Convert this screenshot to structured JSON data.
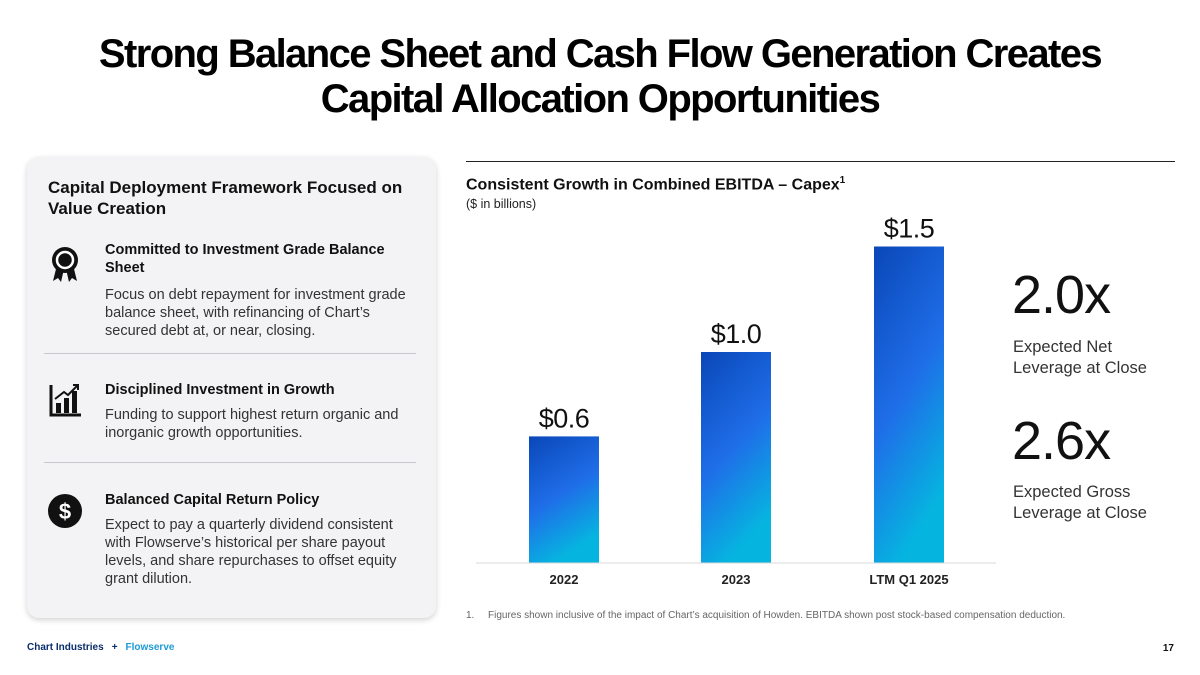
{
  "slide": {
    "title_line1": "Strong Balance Sheet and Cash Flow Generation Creates",
    "title_line2": "Capital Allocation Opportunities",
    "page_number": "17"
  },
  "panel": {
    "heading": "Capital Deployment Framework Focused on Value Creation",
    "items": [
      {
        "icon": "award-ribbon-icon",
        "heading": "Committed to Investment Grade Balance Sheet",
        "body": "Focus on debt repayment for investment grade balance sheet, with refinancing of Chart’s secured debt at, or near, closing."
      },
      {
        "icon": "bar-growth-icon",
        "heading": "Disciplined Investment in Growth",
        "body": "Funding to support highest return organic and inorganic growth opportunities."
      },
      {
        "icon": "dollar-circle-icon",
        "heading": "Balanced Capital Return Policy",
        "body": "Expect to pay a quarterly dividend consistent with Flowserve’s historical per share payout levels, and share repurchases to offset equity grant dilution."
      }
    ]
  },
  "chart_data": {
    "type": "bar",
    "title": "Consistent Growth in Combined EBITDA – Capex",
    "title_footnote_marker": "1",
    "subtitle": "($ in billions)",
    "categories": [
      "2022",
      "2023",
      "LTM Q1 2025"
    ],
    "values": [
      0.6,
      1.0,
      1.5
    ],
    "data_labels": [
      "$0.6",
      "$1.0",
      "$1.5"
    ],
    "xlabel": "",
    "ylabel": "",
    "ylim": [
      0,
      1.5
    ],
    "grid": false,
    "colors": {
      "bar_top": "#0a47b8",
      "bar_mid": "#1f6ee8",
      "bar_bottom": "#06b4e0"
    }
  },
  "metrics": [
    {
      "value": "2.0x",
      "label": "Expected Net Leverage at Close"
    },
    {
      "value": "2.6x",
      "label": "Expected Gross Leverage at Close"
    }
  ],
  "footnote": {
    "number": "1.",
    "text": "Figures shown inclusive of the impact of Chart’s acquisition of Howden. EBITDA shown post stock-based compensation deduction."
  },
  "footer": {
    "company1": "Chart Industries",
    "plus": "+",
    "company2": "Flowserve"
  }
}
